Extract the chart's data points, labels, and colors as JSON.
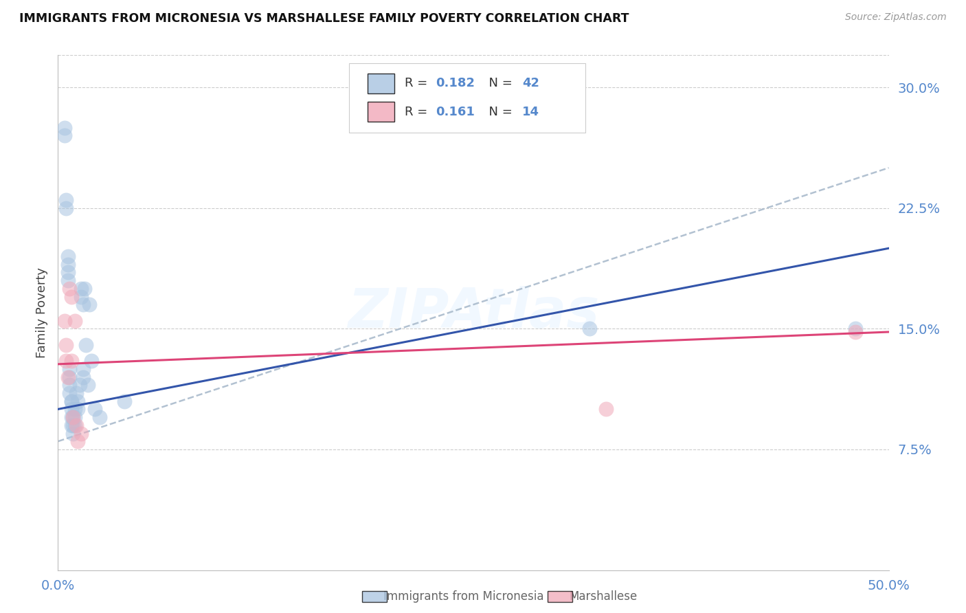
{
  "title": "IMMIGRANTS FROM MICRONESIA VS MARSHALLESE FAMILY POVERTY CORRELATION CHART",
  "source": "Source: ZipAtlas.com",
  "ylabel": "Family Poverty",
  "yticks": [
    0.075,
    0.15,
    0.225,
    0.3
  ],
  "ytick_labels": [
    "7.5%",
    "15.0%",
    "22.5%",
    "30.0%"
  ],
  "xtick_labels": [
    "0.0%",
    "50.0%"
  ],
  "xmin": 0.0,
  "xmax": 0.5,
  "ymin": 0.0,
  "ymax": 0.32,
  "legend_r1": "0.182",
  "legend_n1": "42",
  "legend_r2": "0.161",
  "legend_n2": "14",
  "color_blue": "#A8C4E0",
  "color_pink": "#F0A8B8",
  "color_blue_line": "#3355AA",
  "color_pink_line": "#DD4477",
  "color_dashed": "#AABBCC",
  "color_tick_labels": "#5588CC",
  "color_grid": "#CCCCCC",
  "micronesia_x": [
    0.004,
    0.004,
    0.005,
    0.005,
    0.006,
    0.006,
    0.006,
    0.006,
    0.007,
    0.007,
    0.007,
    0.007,
    0.008,
    0.008,
    0.008,
    0.008,
    0.008,
    0.009,
    0.009,
    0.009,
    0.01,
    0.01,
    0.01,
    0.011,
    0.012,
    0.012,
    0.013,
    0.014,
    0.014,
    0.015,
    0.015,
    0.015,
    0.016,
    0.017,
    0.018,
    0.019,
    0.02,
    0.022,
    0.025,
    0.04,
    0.32,
    0.48
  ],
  "micronesia_y": [
    0.27,
    0.275,
    0.23,
    0.225,
    0.195,
    0.19,
    0.185,
    0.18,
    0.125,
    0.12,
    0.115,
    0.11,
    0.105,
    0.105,
    0.1,
    0.095,
    0.09,
    0.095,
    0.09,
    0.085,
    0.1,
    0.095,
    0.09,
    0.11,
    0.105,
    0.1,
    0.115,
    0.175,
    0.17,
    0.165,
    0.125,
    0.12,
    0.175,
    0.14,
    0.115,
    0.165,
    0.13,
    0.1,
    0.095,
    0.105,
    0.15,
    0.15
  ],
  "marshallese_x": [
    0.004,
    0.005,
    0.005,
    0.006,
    0.007,
    0.008,
    0.008,
    0.009,
    0.01,
    0.011,
    0.012,
    0.014,
    0.33,
    0.48
  ],
  "marshallese_y": [
    0.155,
    0.14,
    0.13,
    0.12,
    0.175,
    0.17,
    0.13,
    0.095,
    0.155,
    0.09,
    0.08,
    0.085,
    0.1,
    0.148
  ],
  "watermark": "ZIPAtlas",
  "legend_label1": "Immigrants from Micronesia",
  "legend_label2": "Marshallese"
}
